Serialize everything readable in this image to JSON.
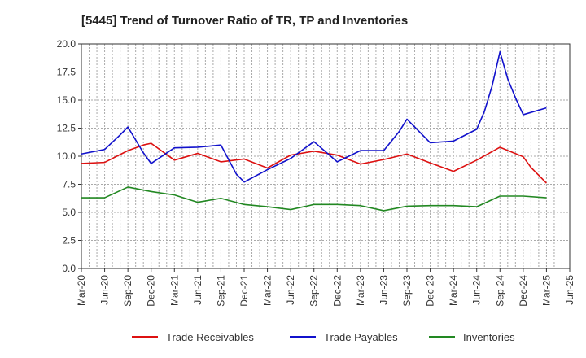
{
  "chart_data": {
    "type": "line",
    "title": "[5445]  Trend of Turnover Ratio of TR, TP and Inventories",
    "xlabel": "",
    "ylabel": "",
    "ylim": [
      0,
      20
    ],
    "y_ticks": [
      "0.0",
      "2.5",
      "5.0",
      "7.5",
      "10.0",
      "12.5",
      "15.0",
      "17.5",
      "20.0"
    ],
    "x_ticks": [
      "Mar-20",
      "Jun-20",
      "Sep-20",
      "Dec-20",
      "Mar-21",
      "Jun-21",
      "Sep-21",
      "Dec-21",
      "Mar-22",
      "Jun-22",
      "Sep-22",
      "Dec-22",
      "Mar-23",
      "Jun-23",
      "Sep-23",
      "Dec-23",
      "Mar-24",
      "Jun-24",
      "Sep-24",
      "Dec-24",
      "Mar-25",
      "Jun-25"
    ],
    "grid": true,
    "legend_position": "bottom",
    "series": [
      {
        "name": "Trade Receivables",
        "color": "#dd1111",
        "points": [
          [
            "Mar-20",
            9.35
          ],
          [
            "Jun-20",
            9.45
          ],
          [
            "Sep-20",
            10.5
          ],
          [
            "Nov-20",
            11.0
          ],
          [
            "Dec-20",
            11.15
          ],
          [
            "Mar-21",
            9.65
          ],
          [
            "Jun-21",
            10.25
          ],
          [
            "Sep-21",
            9.5
          ],
          [
            "Dec-21",
            9.75
          ],
          [
            "Mar-22",
            8.95
          ],
          [
            "Jun-22",
            10.1
          ],
          [
            "Sep-22",
            10.45
          ],
          [
            "Dec-22",
            10.1
          ],
          [
            "Mar-23",
            9.3
          ],
          [
            "Jun-23",
            9.7
          ],
          [
            "Sep-23",
            10.2
          ],
          [
            "Dec-23",
            9.4
          ],
          [
            "Mar-24",
            8.65
          ],
          [
            "Jun-24",
            9.65
          ],
          [
            "Sep-24",
            10.8
          ],
          [
            "Dec-24",
            9.95
          ],
          [
            "Jan-25",
            9.0
          ],
          [
            "Mar-25",
            7.6
          ]
        ]
      },
      {
        "name": "Trade Payables",
        "color": "#1111cc",
        "points": [
          [
            "Mar-20",
            10.2
          ],
          [
            "Jun-20",
            10.6
          ],
          [
            "Aug-20",
            11.9
          ],
          [
            "Sep-20",
            12.6
          ],
          [
            "Nov-20",
            10.3
          ],
          [
            "Dec-20",
            9.35
          ],
          [
            "Mar-21",
            10.75
          ],
          [
            "Jun-21",
            10.8
          ],
          [
            "Sep-21",
            11.0
          ],
          [
            "Nov-21",
            8.4
          ],
          [
            "Dec-21",
            7.7
          ],
          [
            "Mar-22",
            8.8
          ],
          [
            "Jun-22",
            9.8
          ],
          [
            "Sep-22",
            11.3
          ],
          [
            "Dec-22",
            9.5
          ],
          [
            "Mar-23",
            10.5
          ],
          [
            "Jun-23",
            10.5
          ],
          [
            "Aug-23",
            12.2
          ],
          [
            "Sep-23",
            13.3
          ],
          [
            "Nov-23",
            11.9
          ],
          [
            "Dec-23",
            11.2
          ],
          [
            "Mar-24",
            11.35
          ],
          [
            "Jun-24",
            12.4
          ],
          [
            "Jul-24",
            14.0
          ],
          [
            "Aug-24",
            16.3
          ],
          [
            "Sep-24",
            19.3
          ],
          [
            "Oct-24",
            16.9
          ],
          [
            "Nov-24",
            15.2
          ],
          [
            "Dec-24",
            13.7
          ],
          [
            "Mar-25",
            14.3
          ]
        ]
      },
      {
        "name": "Inventories",
        "color": "#228822",
        "points": [
          [
            "Mar-20",
            6.3
          ],
          [
            "Jun-20",
            6.3
          ],
          [
            "Sep-20",
            7.25
          ],
          [
            "Dec-20",
            6.85
          ],
          [
            "Mar-21",
            6.55
          ],
          [
            "Jun-21",
            5.9
          ],
          [
            "Sep-21",
            6.25
          ],
          [
            "Dec-21",
            5.7
          ],
          [
            "Mar-22",
            5.5
          ],
          [
            "Jun-22",
            5.25
          ],
          [
            "Sep-22",
            5.7
          ],
          [
            "Dec-22",
            5.7
          ],
          [
            "Mar-23",
            5.6
          ],
          [
            "Jun-23",
            5.15
          ],
          [
            "Sep-23",
            5.55
          ],
          [
            "Dec-23",
            5.6
          ],
          [
            "Mar-24",
            5.6
          ],
          [
            "Jun-24",
            5.5
          ],
          [
            "Sep-24",
            6.45
          ],
          [
            "Dec-24",
            6.45
          ],
          [
            "Mar-25",
            6.3
          ]
        ]
      }
    ]
  }
}
